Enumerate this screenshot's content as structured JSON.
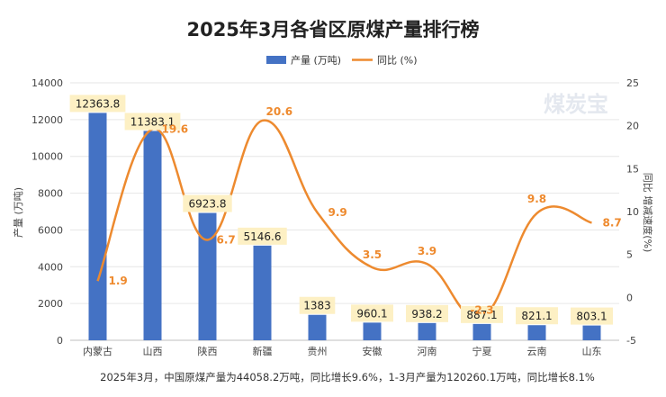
{
  "watermark": "煤炭宝",
  "footnote": "2025年3月，中国原煤产量为44058.2万吨，同比增长9.6%，1-3月产量为120260.1万吨，同比增长8.1%",
  "colors": {
    "bar": "#4472c4",
    "line": "#ed8a2f",
    "label_bg": "#fdf0c4"
  },
  "chart_data": {
    "type": "bar",
    "title": "2025年3月各省区原煤产量排行榜",
    "categories": [
      "内蒙古",
      "山西",
      "陕西",
      "新疆",
      "贵州",
      "安徽",
      "河南",
      "宁夏",
      "云南",
      "山东"
    ],
    "ylabel": "产量 (万吨)",
    "y2label": "同比 增减速度(%)",
    "ylim": [
      0,
      14000
    ],
    "y2lim": [
      -5,
      25
    ],
    "yticks": [
      "0",
      "2000",
      "4000",
      "6000",
      "8000",
      "10000",
      "12000",
      "14000"
    ],
    "y2ticks": [
      "-5",
      "0",
      "5",
      "10",
      "15",
      "20",
      "25"
    ],
    "legend_position": "top-center",
    "series": [
      {
        "name": "产量 (万吨)",
        "type": "bar",
        "axis": "left",
        "values": [
          12363.8,
          11383.1,
          6923.8,
          5146.6,
          1383,
          960.1,
          938.2,
          887.1,
          821.1,
          803.1
        ],
        "labels": [
          "12363.8",
          "11383.1",
          "6923.8",
          "5146.6",
          "1383",
          "960.1",
          "938.2",
          "887.1",
          "821.1",
          "803.1"
        ]
      },
      {
        "name": "同比 (%)",
        "type": "line",
        "axis": "right",
        "smooth": true,
        "values": [
          1.9,
          19.6,
          6.7,
          20.6,
          9.9,
          3.5,
          3.9,
          -2.3,
          9.8,
          8.7
        ],
        "labels": [
          "1.9",
          "19.6",
          "6.7",
          "20.6",
          "9.9",
          "3.5",
          "3.9",
          "-2.3",
          "9.8",
          "8.7"
        ]
      }
    ]
  }
}
